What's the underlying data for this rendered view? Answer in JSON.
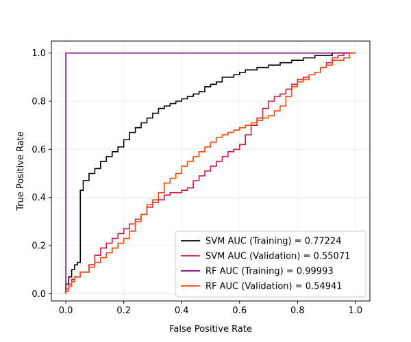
{
  "chart_data": {
    "type": "line",
    "title": "",
    "xlabel": "False Positive Rate",
    "ylabel": "True Positive Rate",
    "xlim": [
      -0.05,
      1.05
    ],
    "ylim": [
      -0.03,
      1.05
    ],
    "xticks": [
      0.0,
      0.2,
      0.4,
      0.6,
      0.8,
      1.0
    ],
    "yticks": [
      0.0,
      0.2,
      0.4,
      0.6,
      0.8,
      1.0
    ],
    "xtick_labels": [
      "0.0",
      "0.2",
      "0.4",
      "0.6",
      "0.8",
      "1.0"
    ],
    "ytick_labels": [
      "0.0",
      "0.2",
      "0.4",
      "0.6",
      "0.8",
      "1.0"
    ],
    "grid": true,
    "legend_position": "lower-right",
    "series": [
      {
        "name": "SVM AUC (Training) = 0.77224",
        "color": "#000000",
        "x": [
          0.0,
          0.0,
          0.01,
          0.02,
          0.03,
          0.04,
          0.05,
          0.05,
          0.06,
          0.08,
          0.1,
          0.12,
          0.14,
          0.16,
          0.18,
          0.2,
          0.22,
          0.24,
          0.26,
          0.28,
          0.3,
          0.32,
          0.34,
          0.36,
          0.38,
          0.4,
          0.42,
          0.44,
          0.46,
          0.48,
          0.5,
          0.52,
          0.54,
          0.56,
          0.58,
          0.6,
          0.62,
          0.64,
          0.66,
          0.68,
          0.7,
          0.72,
          0.74,
          0.76,
          0.78,
          0.8,
          0.82,
          0.84,
          0.86,
          0.88,
          0.9,
          0.92,
          0.94,
          0.96,
          0.98,
          1.0
        ],
        "y": [
          0.0,
          0.02,
          0.04,
          0.07,
          0.1,
          0.12,
          0.13,
          0.4,
          0.43,
          0.47,
          0.5,
          0.52,
          0.55,
          0.57,
          0.59,
          0.61,
          0.64,
          0.67,
          0.69,
          0.71,
          0.73,
          0.75,
          0.77,
          0.78,
          0.79,
          0.8,
          0.81,
          0.82,
          0.83,
          0.84,
          0.86,
          0.87,
          0.88,
          0.9,
          0.9,
          0.91,
          0.92,
          0.93,
          0.93,
          0.94,
          0.94,
          0.95,
          0.95,
          0.96,
          0.96,
          0.97,
          0.97,
          0.98,
          0.98,
          0.99,
          0.99,
          0.99,
          1.0,
          1.0,
          1.0,
          1.0
        ]
      },
      {
        "name": "SVM AUC (Validation) = 0.55071",
        "color": "#dc143c",
        "x": [
          0.0,
          0.01,
          0.02,
          0.03,
          0.05,
          0.08,
          0.1,
          0.12,
          0.14,
          0.16,
          0.18,
          0.2,
          0.22,
          0.24,
          0.26,
          0.28,
          0.3,
          0.32,
          0.34,
          0.36,
          0.38,
          0.4,
          0.42,
          0.44,
          0.46,
          0.48,
          0.5,
          0.52,
          0.54,
          0.56,
          0.58,
          0.6,
          0.62,
          0.64,
          0.66,
          0.68,
          0.7,
          0.72,
          0.74,
          0.76,
          0.78,
          0.8,
          0.82,
          0.84,
          0.86,
          0.88,
          0.9,
          0.92,
          0.94,
          0.96,
          0.98,
          1.0
        ],
        "y": [
          0.0,
          0.02,
          0.04,
          0.06,
          0.07,
          0.09,
          0.12,
          0.16,
          0.19,
          0.21,
          0.23,
          0.25,
          0.27,
          0.29,
          0.31,
          0.33,
          0.36,
          0.38,
          0.39,
          0.41,
          0.42,
          0.42,
          0.43,
          0.44,
          0.47,
          0.49,
          0.51,
          0.53,
          0.55,
          0.57,
          0.59,
          0.6,
          0.62,
          0.66,
          0.7,
          0.73,
          0.77,
          0.8,
          0.82,
          0.83,
          0.85,
          0.87,
          0.89,
          0.9,
          0.91,
          0.92,
          0.94,
          0.96,
          0.98,
          0.99,
          1.0,
          1.0
        ]
      },
      {
        "name": "RF AUC (Training) = 0.99993",
        "color": "#800080",
        "x": [
          0.0,
          0.0,
          0.02,
          1.0
        ],
        "y": [
          0.0,
          1.0,
          1.0,
          1.0
        ]
      },
      {
        "name": "RF AUC (Validation) = 0.54941",
        "color": "#ff4500",
        "x": [
          0.0,
          0.01,
          0.02,
          0.03,
          0.05,
          0.08,
          0.1,
          0.12,
          0.14,
          0.16,
          0.18,
          0.2,
          0.22,
          0.24,
          0.26,
          0.28,
          0.3,
          0.32,
          0.34,
          0.36,
          0.38,
          0.4,
          0.42,
          0.44,
          0.46,
          0.48,
          0.5,
          0.52,
          0.54,
          0.56,
          0.58,
          0.6,
          0.62,
          0.64,
          0.66,
          0.68,
          0.7,
          0.72,
          0.74,
          0.76,
          0.78,
          0.8,
          0.82,
          0.84,
          0.86,
          0.88,
          0.9,
          0.92,
          0.94,
          0.96,
          0.98,
          1.0
        ],
        "y": [
          0.0,
          0.01,
          0.03,
          0.05,
          0.07,
          0.09,
          0.11,
          0.13,
          0.15,
          0.17,
          0.19,
          0.21,
          0.23,
          0.26,
          0.3,
          0.33,
          0.37,
          0.39,
          0.42,
          0.46,
          0.48,
          0.5,
          0.53,
          0.55,
          0.57,
          0.59,
          0.61,
          0.63,
          0.65,
          0.66,
          0.67,
          0.68,
          0.69,
          0.7,
          0.71,
          0.72,
          0.73,
          0.74,
          0.76,
          0.78,
          0.82,
          0.86,
          0.88,
          0.89,
          0.91,
          0.92,
          0.94,
          0.95,
          0.97,
          0.97,
          0.98,
          1.0
        ]
      }
    ]
  }
}
